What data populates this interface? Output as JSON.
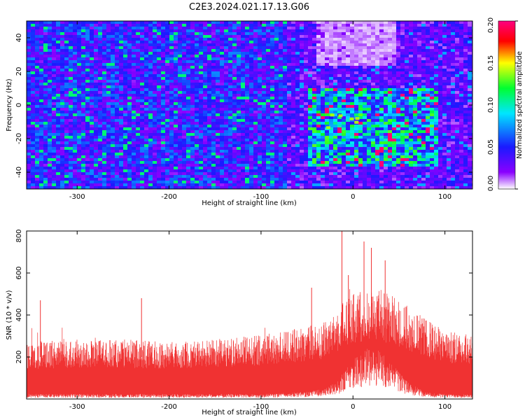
{
  "title": "C2E3.2024.021.17.13.G06",
  "chart_data": [
    {
      "type": "heatmap",
      "title": "C2E3.2024.021.17.13.G06",
      "xlabel": "Height of straight line (km)",
      "ylabel": "Frequency (Hz)",
      "xlim": [
        -355,
        130
      ],
      "ylim": [
        -50,
        50
      ],
      "xticks": [
        -300,
        -200,
        -100,
        0,
        100
      ],
      "yticks": [
        -40,
        -20,
        0,
        20,
        40
      ],
      "colorbar": {
        "label": "Normalized spectral amplitude",
        "range": [
          0.0,
          0.2
        ],
        "ticks": [
          "0.00",
          "0.05",
          "0.10",
          "0.15",
          "0.20"
        ],
        "colormap": [
          "#ffffff",
          "#8a00ff",
          "#1a1aff",
          "#00e6ff",
          "#00ff30",
          "#ffff00",
          "#ff0000",
          "#ff0080"
        ]
      },
      "features": [
        {
          "x_range": [
            -355,
            -75
          ],
          "y_range": [
            -50,
            50
          ],
          "amplitude": 0.05
        },
        {
          "x_range": [
            -50,
            90
          ],
          "y_range": [
            -35,
            10
          ],
          "amplitude": 0.09,
          "peak": 0.14
        },
        {
          "x_range": [
            -40,
            45
          ],
          "y_range": [
            25,
            50
          ],
          "amplitude": 0.01
        }
      ]
    },
    {
      "type": "area",
      "xlabel": "Height of straight line (km)",
      "ylabel": "SNR (10 * v/v)",
      "xlim": [
        -355,
        130
      ],
      "ylim": [
        0,
        800
      ],
      "xticks": [
        -300,
        -200,
        -100,
        0,
        100
      ],
      "yticks": [
        200,
        400,
        600,
        800
      ],
      "color": "#f03232",
      "envelope": {
        "x": [
          -355,
          -300,
          -250,
          -200,
          -150,
          -100,
          -60,
          -30,
          -15,
          0,
          15,
          30,
          45,
          60,
          80,
          100,
          130
        ],
        "upper": [
          260,
          270,
          270,
          260,
          270,
          290,
          320,
          350,
          420,
          480,
          500,
          500,
          470,
          420,
          360,
          310,
          290
        ],
        "lower": [
          15,
          15,
          15,
          15,
          15,
          15,
          20,
          30,
          60,
          120,
          150,
          150,
          100,
          50,
          20,
          15,
          15
        ]
      },
      "peaks": [
        {
          "x": -340,
          "y": 470
        },
        {
          "x": -230,
          "y": 480
        },
        {
          "x": -45,
          "y": 530
        },
        {
          "x": -12,
          "y": 830
        },
        {
          "x": -5,
          "y": 590
        },
        {
          "x": 12,
          "y": 750
        },
        {
          "x": 20,
          "y": 720
        },
        {
          "x": 35,
          "y": 660
        }
      ]
    }
  ]
}
